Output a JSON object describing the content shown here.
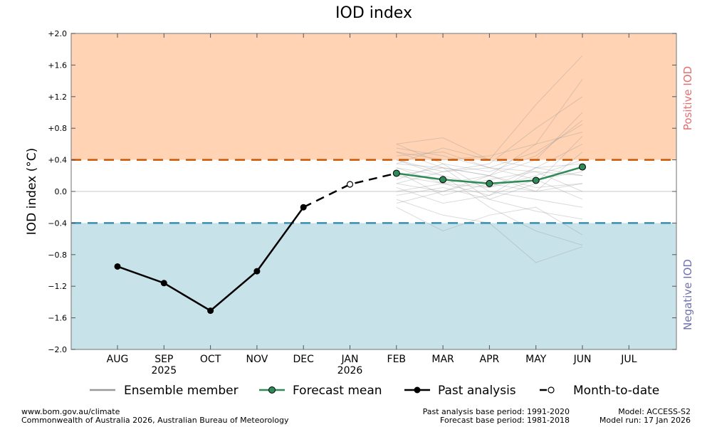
{
  "chart_data": {
    "type": "line",
    "title": "IOD index",
    "ylabel": "IOD index (°C)",
    "ylim": [
      -2.0,
      2.0
    ],
    "y_ticks": [
      {
        "value": 2.0,
        "label": "+2.0"
      },
      {
        "value": 1.6,
        "label": "+1.6"
      },
      {
        "value": 1.2,
        "label": "+1.2"
      },
      {
        "value": 0.8,
        "label": "+0.8"
      },
      {
        "value": 0.4,
        "label": "+0.4"
      },
      {
        "value": 0.0,
        "label": "0.0"
      },
      {
        "value": -0.4,
        "label": "−0.4"
      },
      {
        "value": -0.8,
        "label": "−0.8"
      },
      {
        "value": -1.2,
        "label": "−1.2"
      },
      {
        "value": -1.6,
        "label": "−1.6"
      },
      {
        "value": -2.0,
        "label": "−2.0"
      }
    ],
    "months": [
      "AUG",
      "SEP",
      "OCT",
      "NOV",
      "DEC",
      "JAN",
      "FEB",
      "MAR",
      "APR",
      "MAY",
      "JUN",
      "JUL"
    ],
    "year_labels": [
      {
        "month_index": 1,
        "label": "2025"
      },
      {
        "month_index": 5,
        "label": "2026"
      }
    ],
    "thresholds": {
      "positive": 0.4,
      "negative": -0.4
    },
    "zone_labels": {
      "positive": "Positive IOD",
      "negative": "Negative IOD"
    },
    "colors": {
      "positive_fill": "#ffd3b4",
      "negative_fill": "#c8e2e9",
      "positive_line": "#cc5500",
      "negative_line": "#3a8fb0",
      "positive_label": "#e07070",
      "negative_label": "#7070b0",
      "forecast": "#2e8b57",
      "ensemble": "#999999"
    },
    "series": [
      {
        "name": "Past analysis",
        "x": [
          0,
          1,
          2,
          3,
          4
        ],
        "values": [
          -0.95,
          -1.16,
          -1.51,
          -1.01,
          -0.2
        ]
      },
      {
        "name": "Month-to-date",
        "x": [
          4,
          5,
          6
        ],
        "values": [
          -0.2,
          0.09,
          0.23
        ]
      },
      {
        "name": "Forecast mean",
        "x": [
          6,
          7,
          8,
          9,
          10
        ],
        "values": [
          0.23,
          0.15,
          0.1,
          0.14,
          0.31
        ]
      }
    ],
    "ensemble": {
      "name": "Ensemble member",
      "x": [
        6,
        7,
        8,
        9,
        10
      ],
      "members": [
        [
          0.23,
          0.15,
          0.1,
          0.14,
          0.31
        ],
        [
          0.6,
          0.68,
          0.4,
          1.1,
          1.72
        ],
        [
          0.5,
          0.3,
          0.2,
          0.6,
          1.42
        ],
        [
          0.4,
          0.25,
          0.35,
          0.8,
          1.2
        ],
        [
          0.55,
          0.45,
          0.3,
          0.5,
          0.85
        ],
        [
          0.2,
          0.1,
          -0.05,
          0.3,
          0.6
        ],
        [
          -0.2,
          -0.5,
          -0.3,
          -0.2,
          -0.55
        ],
        [
          -0.1,
          -0.3,
          -0.4,
          -0.9,
          -0.7
        ],
        [
          0.3,
          0.2,
          -0.2,
          -0.5,
          -0.68
        ],
        [
          0.1,
          0.0,
          0.15,
          0.25,
          0.0
        ],
        [
          0.35,
          0.3,
          0.2,
          0.0,
          0.1
        ],
        [
          0.0,
          0.1,
          0.05,
          0.2,
          0.4
        ],
        [
          0.45,
          0.5,
          0.3,
          0.25,
          0.2
        ],
        [
          0.15,
          0.35,
          0.0,
          -0.1,
          -0.2
        ],
        [
          0.25,
          -0.05,
          0.1,
          0.0,
          0.5
        ],
        [
          0.5,
          0.4,
          0.45,
          0.6,
          0.75
        ],
        [
          -0.05,
          0.05,
          -0.1,
          -0.25,
          -0.35
        ],
        [
          0.3,
          0.1,
          0.2,
          0.4,
          1.0
        ],
        [
          0.1,
          0.25,
          0.3,
          0.15,
          -0.1
        ],
        [
          0.4,
          0.2,
          0.05,
          0.3,
          0.2
        ],
        [
          0.2,
          0.3,
          -0.1,
          0.1,
          0.7
        ],
        [
          0.6,
          0.35,
          0.25,
          0.45,
          0.9
        ],
        [
          -0.15,
          0.0,
          0.2,
          0.05,
          0.1
        ],
        [
          0.35,
          0.55,
          0.4,
          0.3,
          0.35
        ],
        [
          0.05,
          -0.15,
          -0.05,
          0.15,
          0.25
        ]
      ]
    },
    "legend": [
      {
        "key": "ensemble",
        "label": "Ensemble member"
      },
      {
        "key": "forecast",
        "label": "Forecast mean"
      },
      {
        "key": "past",
        "label": "Past analysis"
      },
      {
        "key": "mtd",
        "label": "Month-to-date"
      }
    ]
  },
  "footer": {
    "left_line1": "www.bom.gov.au/climate",
    "left_line2": "Commonwealth of Australia 2026, Australian Bureau of Meteorology",
    "mid_line1": "Past analysis base period: 1991-2020",
    "mid_line2": "Forecast base period: 1981-2018",
    "right_line1": "Model: ACCESS-S2",
    "right_line2": "Model run: 17 Jan 2026"
  }
}
